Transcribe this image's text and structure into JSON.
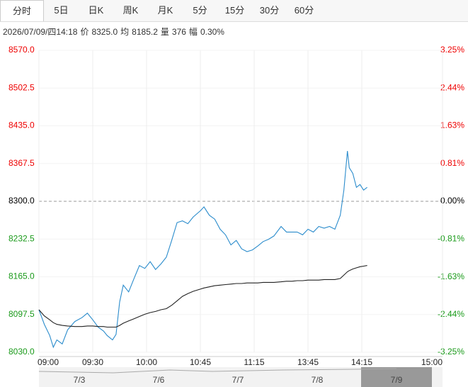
{
  "header": {
    "tabs": [
      "分时",
      "5日",
      "日K",
      "周K",
      "月K",
      "5分",
      "15分",
      "30分",
      "60分"
    ],
    "info": [
      "2026/07/09/四14:18",
      "价",
      "8325.0",
      "均",
      "8185.2",
      "量",
      "376",
      "幅",
      "0.30%"
    ]
  },
  "chart_data": {
    "type": "line",
    "x": [
      0,
      3,
      6,
      8,
      10,
      13,
      16,
      20,
      24,
      27,
      30,
      33,
      36,
      38,
      41,
      43,
      45,
      47,
      50,
      53,
      56,
      59,
      62,
      65,
      68,
      71,
      74,
      77,
      80,
      83,
      86,
      90,
      92,
      95,
      98,
      101,
      104,
      107,
      110,
      113,
      116,
      119,
      122,
      125,
      128,
      131,
      135,
      138,
      141,
      144,
      147,
      150,
      153,
      156,
      159,
      162,
      165,
      168,
      170,
      172,
      173,
      175,
      177,
      179,
      181,
      183
    ],
    "series": [
      {
        "color": "#2b8ccc",
        "values": [
          8106,
          8080,
          8060,
          8039,
          8052,
          8045,
          8070,
          8085,
          8092,
          8100,
          8088,
          8075,
          8068,
          8060,
          8052,
          8062,
          8120,
          8150,
          8138,
          8162,
          8185,
          8180,
          8192,
          8178,
          8188,
          8200,
          8230,
          8262,
          8265,
          8260,
          8272,
          8283,
          8290,
          8275,
          8268,
          8250,
          8240,
          8222,
          8230,
          8215,
          8210,
          8213,
          8220,
          8228,
          8232,
          8238,
          8255,
          8245,
          8245,
          8245,
          8240,
          8250,
          8245,
          8255,
          8252,
          8255,
          8250,
          8275,
          8320,
          8390,
          8360,
          8350,
          8325,
          8330,
          8320,
          8325
        ]
      },
      {
        "color": "#222222",
        "values": [
          8106,
          8095,
          8088,
          8083,
          8080,
          8078,
          8077,
          8076,
          8076,
          8077,
          8077,
          8076,
          8076,
          8075,
          8075,
          8075,
          8078,
          8082,
          8086,
          8090,
          8094,
          8098,
          8101,
          8103,
          8106,
          8108,
          8114,
          8122,
          8130,
          8135,
          8139,
          8143,
          8145,
          8147,
          8149,
          8150,
          8151,
          8152,
          8153,
          8153,
          8154,
          8154,
          8154,
          8155,
          8155,
          8155,
          8156,
          8157,
          8157,
          8158,
          8158,
          8159,
          8159,
          8159,
          8160,
          8160,
          8160,
          8162,
          8168,
          8174,
          8176,
          8179,
          8181,
          8183,
          8184,
          8185.2
        ]
      }
    ],
    "xlim": [
      0,
      225
    ],
    "xticks": [
      {
        "value": 0,
        "label": "09:00"
      },
      {
        "value": 30,
        "label": "09:30"
      },
      {
        "value": 60,
        "label": "10:00"
      },
      {
        "value": 90,
        "label": "10:45"
      },
      {
        "value": 120,
        "label": "11:15"
      },
      {
        "value": 150,
        "label": "13:45"
      },
      {
        "value": 180,
        "label": "14:15"
      },
      {
        "value": 225,
        "label": "15:00"
      }
    ],
    "ylim": [
      8030,
      8570
    ],
    "yticks": [
      {
        "value": 8570,
        "label": "8570.0"
      },
      {
        "value": 8502.5,
        "label": "8502.5"
      },
      {
        "value": 8435,
        "label": "8435.0"
      },
      {
        "value": 8367.5,
        "label": "8367.5"
      },
      {
        "value": 8300,
        "label": "8300.0"
      },
      {
        "value": 8232.5,
        "label": "8232.5"
      },
      {
        "value": 8165,
        "label": "8165.0"
      },
      {
        "value": 8097.5,
        "label": "8097.5"
      },
      {
        "value": 8030,
        "label": "8030.0"
      }
    ],
    "y2lim": [
      -3.25,
      3.25
    ],
    "y2ticks": [
      {
        "value": 3.25,
        "label": "3.25%"
      },
      {
        "value": 2.44,
        "label": "2.44%"
      },
      {
        "value": 1.63,
        "label": "1.63%"
      },
      {
        "value": 0.81,
        "label": "0.81%"
      },
      {
        "value": 0,
        "label": "0.00%"
      },
      {
        "value": -0.81,
        "label": "-0.81%"
      },
      {
        "value": -1.63,
        "label": "-1.63%"
      },
      {
        "value": -2.44,
        "label": "-2.44%"
      },
      {
        "value": -3.25,
        "label": "-3.25%"
      }
    ],
    "navigator": [
      "7/3",
      "7/6",
      "7/7",
      "7/8",
      "7/9"
    ]
  }
}
